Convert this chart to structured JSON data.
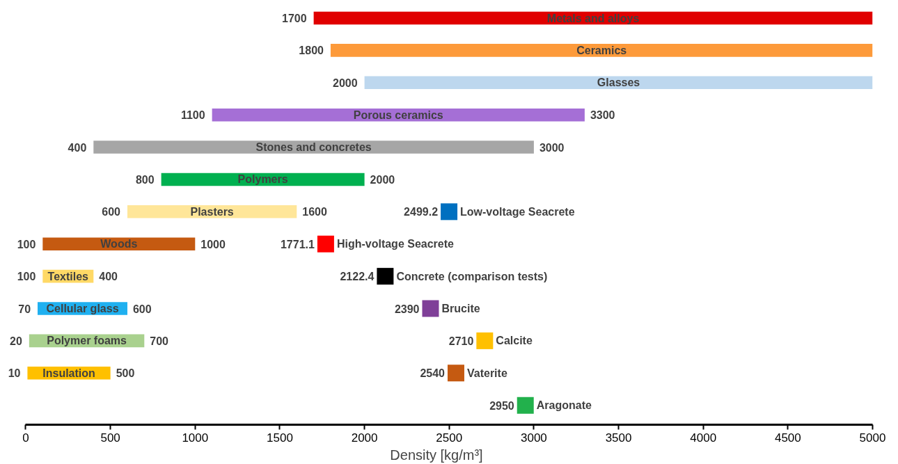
{
  "chart_data": {
    "type": "bar",
    "orientation": "horizontal",
    "xlabel": "Density [kg/m³]",
    "xlim": [
      0,
      5000
    ],
    "xticks": [
      0,
      500,
      1000,
      1500,
      2000,
      2500,
      3000,
      3500,
      4000,
      4500,
      5000
    ],
    "tick_labels": "x",
    "grid": false,
    "categories": [
      "Metals and alloys",
      "Ceramics",
      "Glasses",
      "Porous ceramics",
      "Stones and concretes",
      "Polymers",
      "Plasters",
      "Woods",
      "Textiles",
      "Cellular glass",
      "Polymer foams",
      "Insulation",
      null
    ],
    "series": [
      {
        "type": "bar",
        "colors": [
          "#e00000",
          "#fd9a3a",
          "#bdd7ee",
          "#a56fd6",
          "#a6a6a6",
          "#00b050",
          "#ffe699",
          "#c55a11",
          "#ffd966",
          "#1fb0f0",
          "#a9d18e",
          "#ffc000",
          null
        ],
        "base": [
          1700,
          1800,
          2000,
          1100,
          400,
          800,
          600,
          100,
          100,
          70,
          20,
          10,
          null
        ],
        "values": [
          3300,
          3200,
          3000,
          2200,
          2600,
          1200,
          1000,
          900,
          300,
          530,
          680,
          490,
          null
        ],
        "value_labels": [
          null,
          null,
          null,
          "3300",
          "3000",
          "2000",
          "1600",
          "1000",
          "400",
          "600",
          "700",
          "500",
          null
        ]
      },
      {
        "type": "scatter",
        "name": "Low-voltage Seacrete",
        "color": "#0070c0",
        "x": [
          "Plasters"
        ],
        "values": [
          2499.2
        ],
        "data_labels": true
      },
      {
        "type": "scatter",
        "name": "High-voltage Seacrete",
        "color": "#ff0000",
        "x": [
          "Woods"
        ],
        "values": [
          1771.1
        ],
        "data_labels": true
      },
      {
        "type": "scatter",
        "name": "Concrete (comparison tests)",
        "color": "#000000",
        "x": [
          "Textiles"
        ],
        "values": [
          2122.4
        ],
        "data_labels": true
      },
      {
        "type": "scatter",
        "name": "Brucite",
        "color": "#7f3f98",
        "x": [
          "Cellular glass"
        ],
        "values": [
          2390
        ],
        "data_labels": true
      },
      {
        "type": "scatter",
        "name": "Calcite",
        "color": "#ffc000",
        "x": [
          "Polymer foams"
        ],
        "values": [
          2710
        ],
        "data_labels": true
      },
      {
        "type": "scatter",
        "name": "Vaterite",
        "color": "#c55a11",
        "x": [
          "Insulation"
        ],
        "values": [
          2540
        ],
        "data_labels": true
      },
      {
        "type": "scatter",
        "name": "Aragonate",
        "color": "#22b14c",
        "x": [
          null
        ],
        "values": [
          2950
        ],
        "data_labels": true
      }
    ],
    "marker": "square",
    "annotations": [
      {
        "text": "1700",
        "x": 1700,
        "y": "Metals and alloys"
      },
      {
        "text": "1800",
        "x": 1800,
        "y": "Ceramics"
      },
      {
        "text": "2000",
        "x": 2000,
        "y": "Glasses"
      },
      {
        "text": "1100",
        "x": 1100,
        "y": "Porous ceramics"
      },
      {
        "text": "400",
        "x": 400,
        "y": "Stones and concretes"
      },
      {
        "text": "800",
        "x": 800,
        "y": "Polymers"
      },
      {
        "text": "600",
        "x": 600,
        "y": "Plasters"
      },
      {
        "text": "100",
        "x": 100,
        "y": "Woods"
      },
      {
        "text": "100",
        "x": 100,
        "y": "Textiles"
      },
      {
        "text": "70",
        "x": 70,
        "y": "Cellular glass"
      },
      {
        "text": "20",
        "x": 20,
        "y": "Polymer foams"
      },
      {
        "text": "10",
        "x": 10,
        "y": "Insulation"
      }
    ]
  }
}
